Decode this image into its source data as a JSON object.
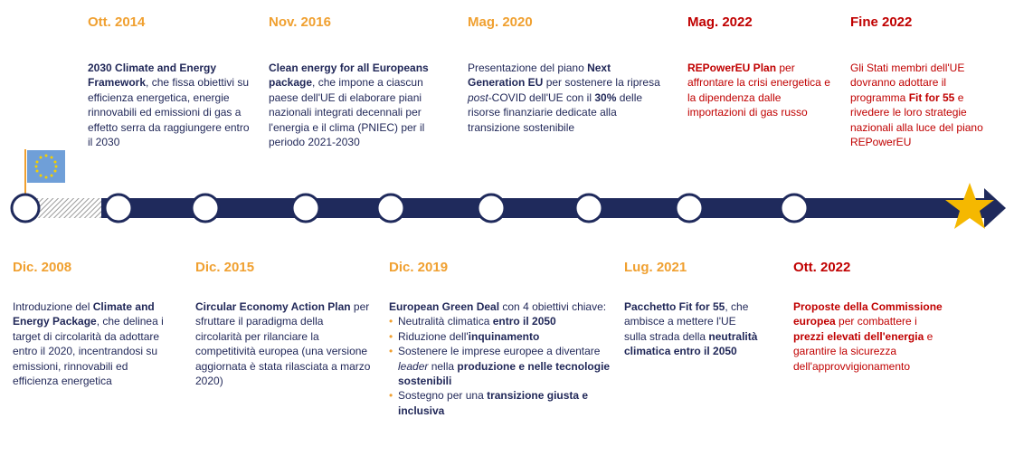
{
  "timeline": {
    "top": [
      {
        "date": "Ott. 2014",
        "red": false,
        "desc": [
          {
            "t": "2030 Climate and Energy Framework",
            "b": true
          },
          {
            "t": ", che fissa obiettivi su efficienza energetica, energie rinnovabili ed emissioni di gas a effetto serra da raggiungere entro il 2030"
          }
        ]
      },
      {
        "date": "Nov. 2016",
        "red": false,
        "desc": [
          {
            "t": "Clean energy for all Europeans package",
            "b": true
          },
          {
            "t": ", che impone a ciascun paese dell'UE di elaborare piani nazionali integrati decennali per l'energia e il clima (PNIEC) per il periodo 2021-2030"
          }
        ]
      },
      {
        "date": "Mag. 2020",
        "red": false,
        "desc": [
          {
            "t": "Presentazione del piano "
          },
          {
            "t": "Next Generation EU",
            "b": true
          },
          {
            "t": " per sostenere la ripresa "
          },
          {
            "t": "post",
            "i": true
          },
          {
            "t": "-COVID dell'UE con il "
          },
          {
            "t": "30%",
            "b": true
          },
          {
            "t": " delle risorse finanziarie dedicate alla transizione sostenibile"
          }
        ]
      },
      {
        "date": "Mag. 2022",
        "red": true,
        "desc": [
          {
            "t": "REPowerEU Plan",
            "b": true
          },
          {
            "t": " per affrontare la crisi energetica e la dipendenza dalle importazioni di gas russo"
          }
        ]
      },
      {
        "date": "Fine 2022",
        "red": true,
        "desc": [
          {
            "t": "Gli Stati membri dell'UE dovranno adottare il programma "
          },
          {
            "t": "Fit for 55",
            "b": true
          },
          {
            "t": " e rivedere le loro strategie nazionali alla luce del piano REPowerEU"
          }
        ]
      }
    ],
    "bottom": [
      {
        "date": "Dic. 2008",
        "red": false,
        "desc": [
          {
            "t": "Introduzione del "
          },
          {
            "t": "Climate and Energy Package",
            "b": true
          },
          {
            "t": ", che delinea i target di circolarità da adottare entro il 2020, incentrandosi su emissioni, rinnovabili ed efficienza energetica"
          }
        ]
      },
      {
        "date": "Dic. 2015",
        "red": false,
        "desc": [
          {
            "t": "Circular Economy Action Plan",
            "b": true
          },
          {
            "t": " per sfruttare il paradigma della circolarità per rilanciare la competitività europea (una versione aggiornata è stata rilasciata a marzo 2020)"
          }
        ]
      },
      {
        "date": "Dic. 2019",
        "red": false,
        "desc": [
          {
            "t": "European Green Deal",
            "b": true
          },
          {
            "t": " con 4 obiettivi chiave:"
          }
        ],
        "bullets": [
          [
            {
              "t": "Neutralità climatica "
            },
            {
              "t": "entro il 2050",
              "b": true
            }
          ],
          [
            {
              "t": "Riduzione dell'"
            },
            {
              "t": "inquinamento",
              "b": true
            }
          ],
          [
            {
              "t": "Sostenere le imprese europee a diventare "
            },
            {
              "t": "leader",
              "i": true
            },
            {
              "t": " nella "
            },
            {
              "t": "produzione e nelle tecnologie sostenibili",
              "b": true
            }
          ],
          [
            {
              "t": "Sostegno per una "
            },
            {
              "t": "transizione giusta e inclusiva",
              "b": true
            }
          ]
        ]
      },
      {
        "date": "Lug. 2021",
        "red": false,
        "desc": [
          {
            "t": "Pacchetto Fit for 55",
            "b": true
          },
          {
            "t": ", che ambisce a mettere l'UE sulla strada della "
          },
          {
            "t": "neutralità climatica entro il 2050",
            "b": true
          }
        ]
      },
      {
        "date": "Ott. 2022",
        "red": true,
        "desc": [
          {
            "t": "Proposte della Commissione europea",
            "b": true
          },
          {
            "t": " per combattere i "
          },
          {
            "t": "prezzi elevati dell'energia",
            "b": true
          },
          {
            "t": " e garantire la sicurezza dell'approvvigionamento"
          }
        ]
      }
    ]
  }
}
